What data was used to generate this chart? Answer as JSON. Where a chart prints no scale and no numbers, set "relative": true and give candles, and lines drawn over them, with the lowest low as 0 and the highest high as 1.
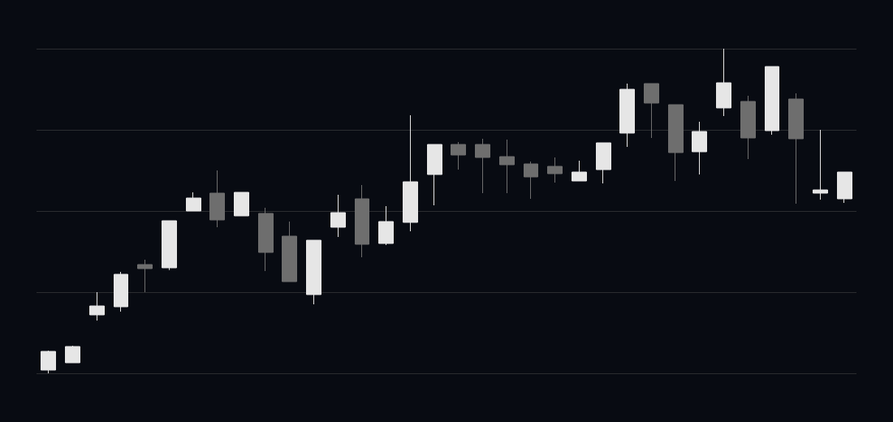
{
  "chart_data": {
    "type": "candlestick",
    "relative": true,
    "grid": "y",
    "categories": [
      null,
      null,
      null,
      null,
      null,
      null,
      null,
      null,
      null,
      null,
      null,
      null,
      null,
      null,
      null,
      null,
      null,
      null,
      null,
      null,
      null,
      null,
      null,
      null,
      null,
      null,
      null,
      null,
      null,
      null,
      null,
      null,
      null,
      null
    ],
    "ohlc": [
      [
        0.01,
        0.07,
        0,
        0.0675
      ],
      [
        0.0325,
        0.085,
        0.0325,
        0.0825
      ],
      [
        0.18,
        0.25,
        0.1625,
        0.2075
      ],
      [
        0.205,
        0.3125,
        0.19,
        0.305
      ],
      [
        0.335,
        0.35,
        0.25,
        0.3225
      ],
      [
        0.325,
        0.47,
        0.318,
        0.47
      ],
      [
        0.5,
        0.5575,
        0.5,
        0.54
      ],
      [
        0.555,
        0.625,
        0.45,
        0.4725
      ],
      [
        0.485,
        0.5575,
        0.485,
        0.5575
      ],
      [
        0.4925,
        0.51,
        0.315,
        0.3725
      ],
      [
        0.4225,
        0.4675,
        0.2825,
        0.2825
      ],
      [
        0.2425,
        0.41,
        0.2125,
        0.41
      ],
      [
        0.45,
        0.55,
        0.42,
        0.495
      ],
      [
        0.5375,
        0.58,
        0.3575,
        0.3975
      ],
      [
        0.4,
        0.515,
        0.395,
        0.4675
      ],
      [
        0.465,
        0.795,
        0.4375,
        0.59
      ],
      [
        0.6125,
        0.705,
        0.5175,
        0.705
      ],
      [
        0.705,
        0.7125,
        0.6275,
        0.6725
      ],
      [
        0.705,
        0.7225,
        0.555,
        0.665
      ],
      [
        0.6675,
        0.72,
        0.555,
        0.6425
      ],
      [
        0.645,
        0.6525,
        0.5375,
        0.605
      ],
      [
        0.6375,
        0.665,
        0.5875,
        0.615
      ],
      [
        0.5925,
        0.655,
        0.5925,
        0.62
      ],
      [
        0.6275,
        0.71,
        0.585,
        0.71
      ],
      [
        0.74,
        0.8925,
        0.6975,
        0.875
      ],
      [
        0.8925,
        0.8925,
        0.725,
        0.8325
      ],
      [
        0.8275,
        0.8275,
        0.5925,
        0.68
      ],
      [
        0.6825,
        0.775,
        0.6125,
        0.745
      ],
      [
        0.8175,
        1,
        0.7925,
        0.895
      ],
      [
        0.8375,
        0.855,
        0.66,
        0.725
      ],
      [
        0.7475,
        0.945,
        0.735,
        0.945
      ],
      [
        0.845,
        0.8625,
        0.5225,
        0.7225
      ],
      [
        0.555,
        0.75,
        0.535,
        0.565
      ],
      [
        0.5375,
        0.62,
        0.525,
        0.62
      ]
    ],
    "colors": [
      "#e6e6e6",
      "#e6e6e6",
      "#e6e6e6",
      "#e6e6e6",
      "#6e6e6e",
      "#e6e6e6",
      "#e6e6e6",
      "#6e6e6e",
      "#e6e6e6",
      "#6e6e6e",
      "#6e6e6e",
      "#e6e6e6",
      "#e6e6e6",
      "#6e6e6e",
      "#e6e6e6",
      "#e6e6e6",
      "#e6e6e6",
      "#6e6e6e",
      "#6e6e6e",
      "#6e6e6e",
      "#6e6e6e",
      "#6e6e6e",
      "#e6e6e6",
      "#e6e6e6",
      "#e6e6e6",
      "#6e6e6e",
      "#6e6e6e",
      "#e6e6e6",
      "#e6e6e6",
      "#6e6e6e",
      "#e6e6e6",
      "#6e6e6e",
      "#e6e6e6",
      "#e6e6e6"
    ]
  }
}
